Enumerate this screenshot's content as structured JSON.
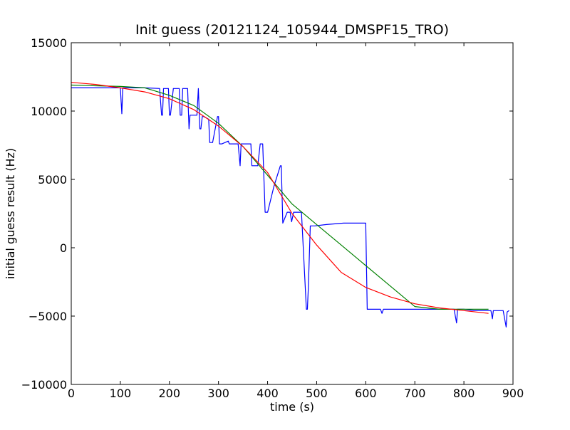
{
  "chart_data": {
    "type": "line",
    "title": "Init guess (20121124_105944_DMSPF15_TRO)",
    "xlabel": "time (s)",
    "ylabel": "initial guess result (Hz)",
    "xlim": [
      0,
      900
    ],
    "ylim": [
      -10000,
      15000
    ],
    "xticks": [
      0,
      100,
      200,
      300,
      400,
      500,
      600,
      700,
      800,
      900
    ],
    "yticks": [
      -10000,
      -5000,
      0,
      5000,
      10000,
      15000
    ],
    "xtick_labels": [
      "0",
      "100",
      "200",
      "300",
      "400",
      "500",
      "600",
      "700",
      "800",
      "900"
    ],
    "ytick_labels": [
      "−10000",
      "−5000",
      "0",
      "5000",
      "10000",
      "15000"
    ],
    "grid": false,
    "series": [
      {
        "color": "#0000ff",
        "x": [
          0,
          100,
          103,
          105,
          150,
          180,
          184,
          186,
          188,
          198,
          200,
          202,
          208,
          210,
          220,
          222,
          225,
          227,
          237,
          240,
          242,
          245,
          247,
          256,
          259,
          262,
          264,
          267,
          270,
          280,
          282,
          285,
          288,
          298,
          300,
          302,
          305,
          307,
          320,
          322,
          325,
          327,
          340,
          344,
          346,
          348,
          352,
          356,
          360,
          366,
          368,
          370,
          380,
          385,
          390,
          395,
          400,
          413,
          426,
          428,
          431,
          440,
          443,
          446,
          449,
          453,
          460,
          463,
          466,
          469,
          479,
          481,
          483,
          487,
          496,
          520,
          555,
          600,
          603,
          606,
          630,
          633,
          636,
          640,
          660,
          690,
          740,
          780,
          785,
          787,
          790,
          800,
          820,
          855,
          858,
          860,
          862,
          865,
          880,
          886,
          888,
          892
        ],
        "y": [
          11700,
          11700,
          9800,
          11700,
          11700,
          11650,
          9700,
          9700,
          11650,
          11650,
          9700,
          9700,
          11650,
          11650,
          11650,
          9700,
          9700,
          11650,
          11650,
          8700,
          9700,
          9700,
          9700,
          9700,
          11650,
          8700,
          8700,
          9600,
          9600,
          9400,
          7700,
          7700,
          7700,
          9600,
          9600,
          7600,
          7600,
          7600,
          7800,
          7600,
          7600,
          7600,
          7600,
          6000,
          7600,
          7600,
          7600,
          7600,
          7600,
          7600,
          6000,
          6000,
          6000,
          7600,
          7600,
          2600,
          2600,
          4500,
          6000,
          6000,
          1800,
          2600,
          2600,
          2600,
          1900,
          2600,
          2600,
          2600,
          2600,
          2600,
          -4500,
          -4500,
          -3000,
          1600,
          1600,
          1700,
          1800,
          1800,
          -4500,
          -4500,
          -4500,
          -4800,
          -4500,
          -4500,
          -4500,
          -4500,
          -4500,
          -4500,
          -5500,
          -4500,
          -4500,
          -4500,
          -4600,
          -4600,
          -5200,
          -4600,
          -4600,
          -4600,
          -4600,
          -5800,
          -4700,
          -4600
        ]
      },
      {
        "color": "#008000",
        "x": [
          0,
          50,
          100,
          150,
          200,
          250,
          300,
          350,
          400,
          450,
          500,
          550,
          600,
          650,
          700,
          750,
          800,
          850
        ],
        "y": [
          11900,
          11850,
          11800,
          11700,
          11150,
          10400,
          9100,
          7400,
          5300,
          3200,
          1700,
          200,
          -1300,
          -2800,
          -4300,
          -4500,
          -4500,
          -4500
        ]
      },
      {
        "color": "#ff0000",
        "x": [
          0,
          50,
          100,
          150,
          200,
          250,
          300,
          350,
          400,
          450,
          500,
          550,
          600,
          650,
          700,
          750,
          800,
          850
        ],
        "y": [
          12100,
          11950,
          11700,
          11400,
          10900,
          10100,
          8900,
          7400,
          5500,
          2500,
          200,
          -1800,
          -2900,
          -3600,
          -4100,
          -4400,
          -4600,
          -4800
        ]
      }
    ]
  }
}
